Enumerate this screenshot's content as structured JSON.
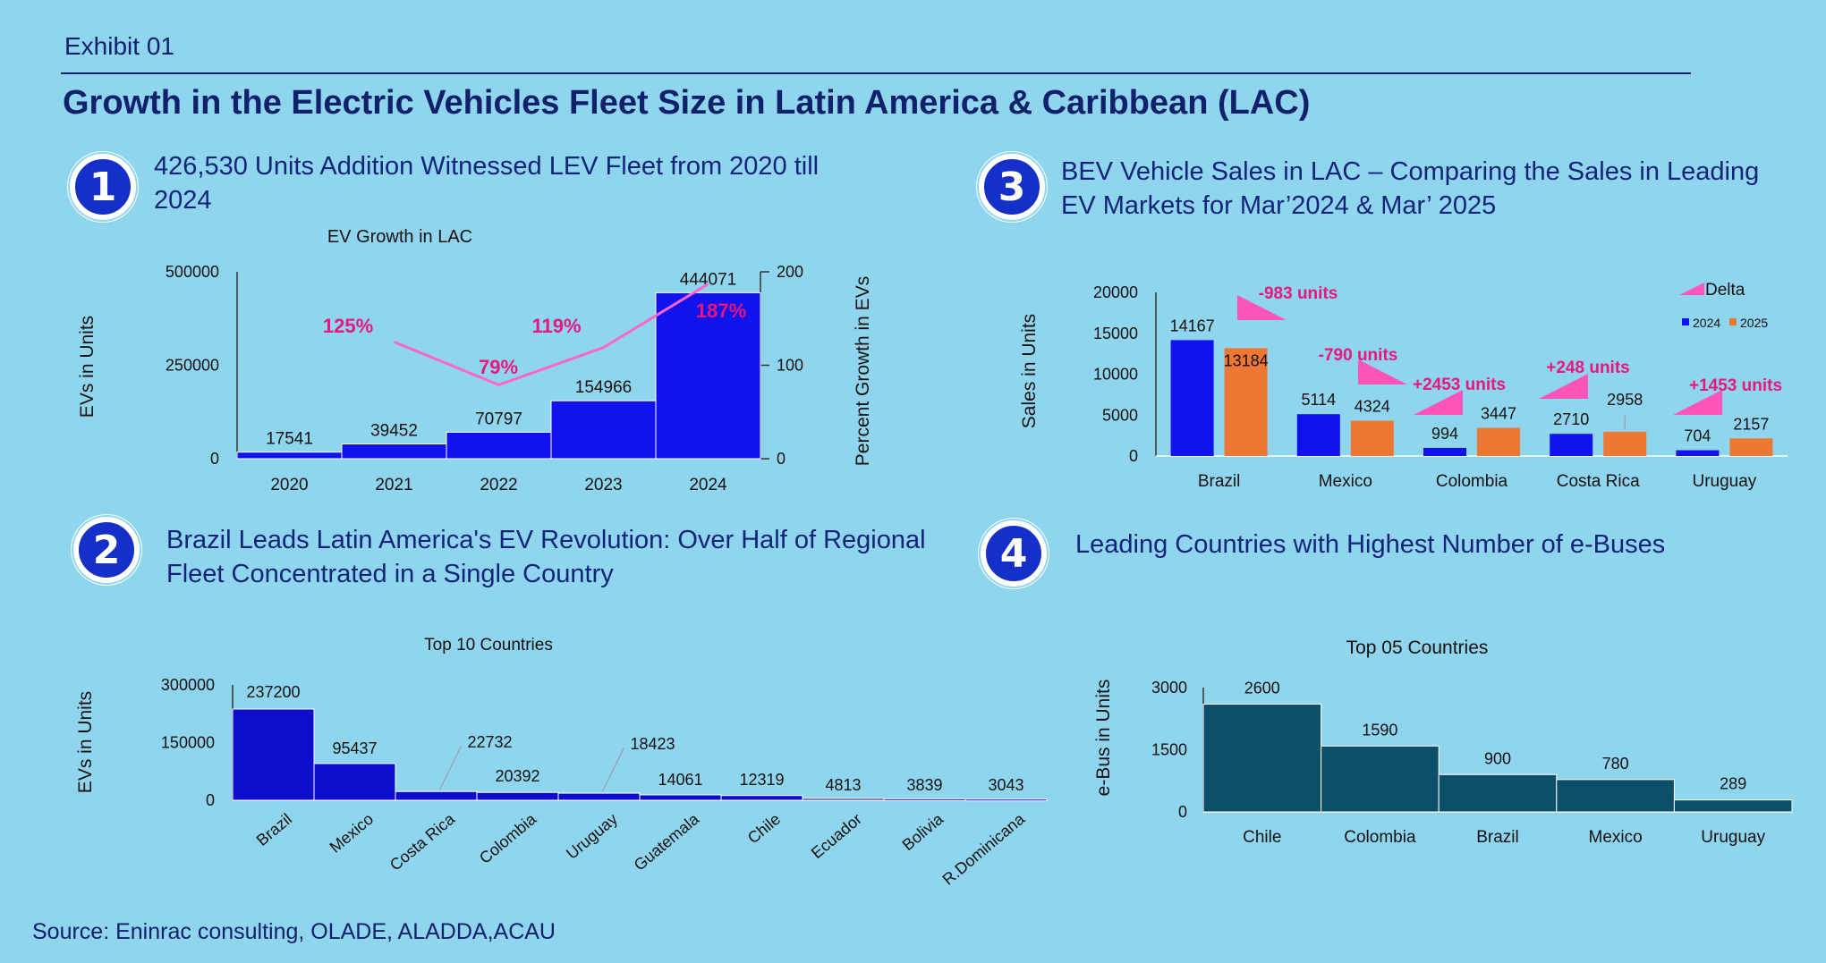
{
  "header": {
    "exhibit": "Exhibit 01",
    "title": "Growth in the Electric Vehicles Fleet Size in Latin America & Caribbean (LAC)"
  },
  "sections": [
    {
      "number": "1",
      "heading": "426,530 Units Addition Witnessed LEV Fleet from 2020 till 2024"
    },
    {
      "number": "2",
      "heading": "Brazil Leads Latin America's EV Revolution: Over Half of Regional Fleet Concentrated in a Single Country"
    },
    {
      "number": "3",
      "heading": "BEV Vehicle Sales in LAC – Comparing the Sales in Leading EV Markets for Mar’2024 & Mar’ 2025"
    },
    {
      "number": "4",
      "heading": "Leading Countries with Highest Number of e-Buses"
    }
  ],
  "source": "Source: Eninrac consulting, OLADE, ALADDA,ACAU",
  "colors": {
    "background": "#8fd5ee",
    "navy": "#10206a",
    "blue_bar": "#1212ee",
    "dark_blue_bar": "#0d0dcc",
    "orange_bar": "#ee7733",
    "teal_bar": "#0b4f68",
    "pink": "#ff55bb",
    "magenta_label": "#e8177f"
  },
  "chart_data": [
    {
      "id": "ev-growth",
      "type": "bar",
      "title": "EV Growth in LAC",
      "ylabel": "EVs in Units",
      "y2label": "Percent Growth in EVs",
      "categories": [
        "2020",
        "2021",
        "2022",
        "2023",
        "2024"
      ],
      "values": [
        17541,
        39452,
        70797,
        154966,
        444071
      ],
      "value_labels": [
        "17541",
        "39452",
        "70797",
        "154966",
        "444071"
      ],
      "ylim": [
        0,
        500000
      ],
      "yticks": [
        "0",
        "250000",
        "500000"
      ],
      "y2lim": [
        0,
        200
      ],
      "y2ticks": [
        "0",
        "100",
        "200"
      ],
      "growth_series": {
        "categories": [
          "2021",
          "2022",
          "2023",
          "2024"
        ],
        "values": [
          125,
          79,
          119,
          187
        ],
        "labels": [
          "125%",
          "79%",
          "119%",
          "187%"
        ]
      }
    },
    {
      "id": "top-10",
      "type": "bar",
      "title": "Top 10 Countries",
      "ylabel": "EVs in Units",
      "categories": [
        "Brazil",
        "Mexico",
        "Costa Rica",
        "Colombia",
        "Uruguay",
        "Guatemala",
        "Chile",
        "Ecuador",
        "Bolivia",
        "R.Dominicana"
      ],
      "values": [
        237200,
        95437,
        22732,
        20392,
        18423,
        14061,
        12319,
        4813,
        3839,
        3043
      ],
      "value_labels": [
        "237200",
        "95437",
        "22732",
        "20392",
        "18423",
        "14061",
        "12319",
        "4813",
        "3839",
        "3043"
      ],
      "ylim": [
        0,
        300000
      ],
      "yticks": [
        "0",
        "150000",
        "300000"
      ]
    },
    {
      "id": "bev-sales",
      "type": "bar",
      "ylabel": "Sales in Units",
      "categories": [
        "Brazil",
        "Mexico",
        "Colombia",
        "Costa Rica",
        "Uruguay"
      ],
      "series": [
        {
          "name": "2024",
          "values": [
            14167,
            5114,
            994,
            2710,
            704
          ],
          "labels": [
            "14167",
            "5114",
            "994",
            "2710",
            "704"
          ]
        },
        {
          "name": "2025",
          "values": [
            13184,
            4324,
            3447,
            2958,
            2157
          ],
          "labels": [
            "13184",
            "4324",
            "3447",
            "2958",
            "2157"
          ]
        }
      ],
      "delta_series": {
        "name": "Delta",
        "values": [
          -983,
          -790,
          2453,
          248,
          1453
        ],
        "labels": [
          "-983 units",
          "-790 units",
          "+2453 units",
          "+248 units",
          "+1453 units"
        ]
      },
      "ylim": [
        0,
        20000
      ],
      "yticks": [
        "0",
        "5000",
        "10000",
        "15000",
        "20000"
      ],
      "legend_position": "top-right"
    },
    {
      "id": "top-05",
      "type": "bar",
      "title": "Top 05 Countries",
      "ylabel": "e-Bus in Units",
      "categories": [
        "Chile",
        "Colombia",
        "Brazil",
        "Mexico",
        "Uruguay"
      ],
      "values": [
        2600,
        1590,
        900,
        780,
        289
      ],
      "value_labels": [
        "2600",
        "1590",
        "900",
        "780",
        "289"
      ],
      "ylim": [
        0,
        3000
      ],
      "yticks": [
        "0",
        "1500",
        "3000"
      ]
    }
  ]
}
